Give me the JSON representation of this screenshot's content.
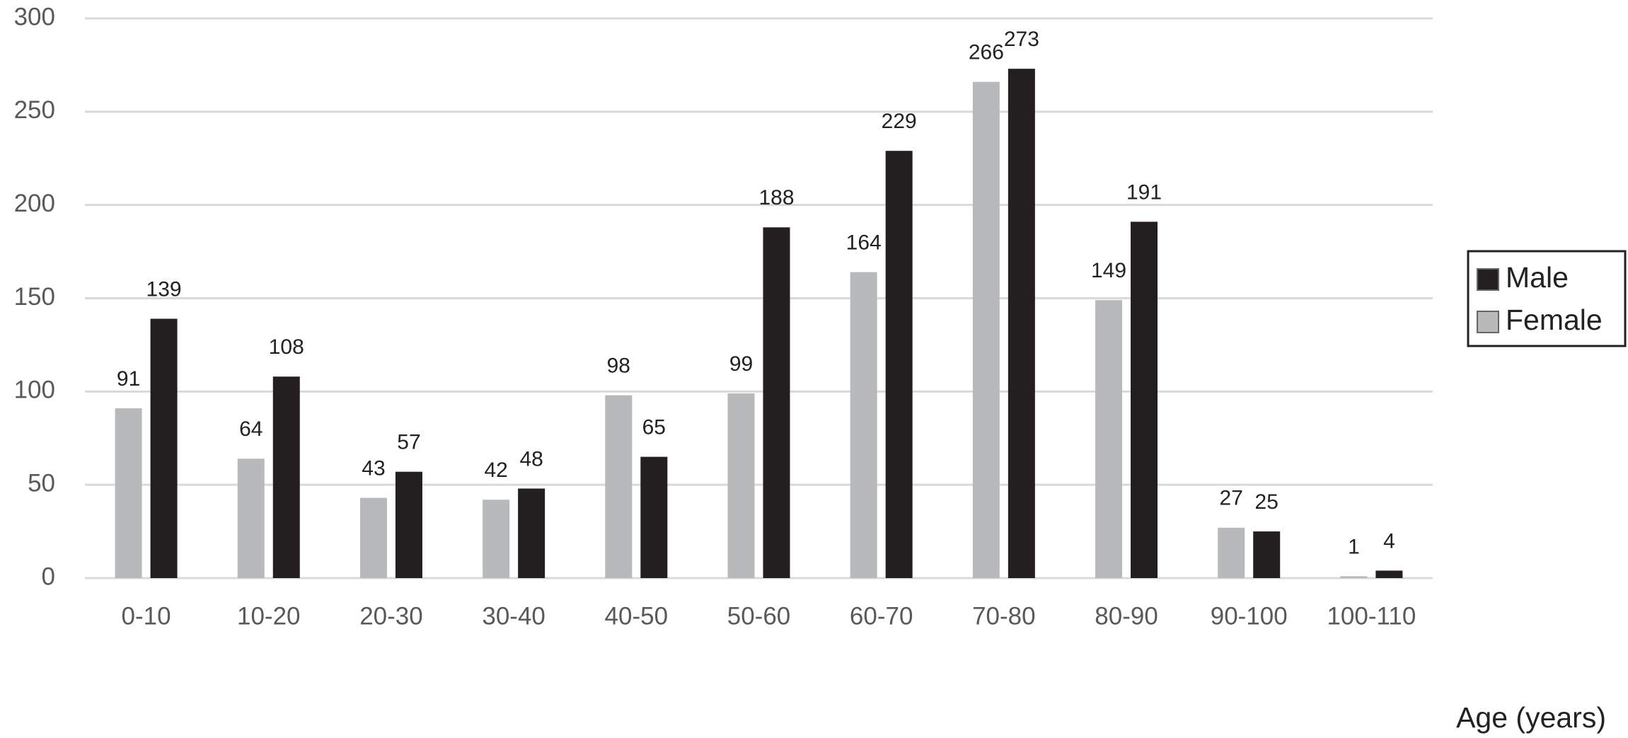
{
  "chart_data": {
    "type": "bar",
    "x_label": "Age (years)",
    "categories": [
      "0-10",
      "10-20",
      "20-30",
      "30-40",
      "40-50",
      "50-60",
      "60-70",
      "70-80",
      "80-90",
      "90-100",
      "100-110"
    ],
    "series": [
      {
        "name": "Male",
        "color": "#231f20",
        "values": [
          139,
          108,
          57,
          48,
          65,
          188,
          229,
          273,
          191,
          25,
          4
        ]
      },
      {
        "name": "Female",
        "color": "#b8b9bb",
        "values": [
          91,
          64,
          43,
          42,
          98,
          99,
          164,
          266,
          149,
          27,
          1
        ]
      }
    ],
    "ylim": [
      0,
      300
    ],
    "yticks": [
      0,
      50,
      100,
      150,
      200,
      250,
      300
    ],
    "grid": true,
    "legend": "right"
  }
}
